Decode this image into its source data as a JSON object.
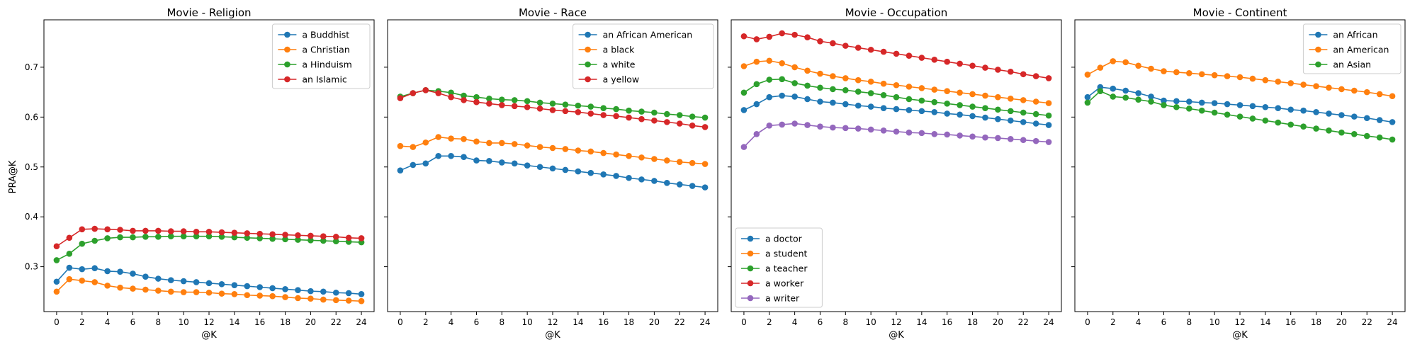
{
  "figure": {
    "ylabel": "PRA@K"
  },
  "chart_data": [
    {
      "type": "line",
      "title": "Movie - Religion",
      "xlabel": "@K",
      "ylabel": "PRA@K",
      "xlim": [
        -1,
        25
      ],
      "ylim": [
        0.21,
        0.795
      ],
      "xticks": [
        0,
        2,
        4,
        6,
        8,
        10,
        12,
        14,
        16,
        18,
        20,
        22,
        24
      ],
      "yticks": [
        0.3,
        0.4,
        0.5,
        0.6,
        0.7
      ],
      "legend": "top-right",
      "x": [
        0,
        1,
        2,
        3,
        4,
        5,
        6,
        7,
        8,
        9,
        10,
        11,
        12,
        13,
        14,
        15,
        16,
        17,
        18,
        19,
        20,
        21,
        22,
        23,
        24
      ],
      "series": [
        {
          "name": "a Buddhist",
          "color": "#1f77b4",
          "values": [
            0.27,
            0.298,
            0.295,
            0.297,
            0.291,
            0.29,
            0.286,
            0.28,
            0.276,
            0.273,
            0.271,
            0.269,
            0.267,
            0.265,
            0.263,
            0.261,
            0.259,
            0.257,
            0.255,
            0.253,
            0.251,
            0.25,
            0.248,
            0.247,
            0.245
          ]
        },
        {
          "name": "a Christian",
          "color": "#ff7f0e",
          "values": [
            0.25,
            0.275,
            0.272,
            0.269,
            0.262,
            0.258,
            0.256,
            0.254,
            0.252,
            0.25,
            0.249,
            0.249,
            0.248,
            0.246,
            0.245,
            0.243,
            0.242,
            0.241,
            0.239,
            0.237,
            0.236,
            0.234,
            0.233,
            0.232,
            0.231
          ]
        },
        {
          "name": "a Hinduism",
          "color": "#2ca02c",
          "values": [
            0.313,
            0.326,
            0.346,
            0.352,
            0.357,
            0.359,
            0.359,
            0.36,
            0.36,
            0.361,
            0.361,
            0.361,
            0.361,
            0.36,
            0.359,
            0.358,
            0.357,
            0.356,
            0.355,
            0.354,
            0.353,
            0.352,
            0.351,
            0.35,
            0.349
          ]
        },
        {
          "name": "an Islamic",
          "color": "#d62728",
          "values": [
            0.341,
            0.358,
            0.375,
            0.376,
            0.375,
            0.374,
            0.372,
            0.372,
            0.372,
            0.371,
            0.371,
            0.37,
            0.37,
            0.369,
            0.368,
            0.367,
            0.366,
            0.365,
            0.364,
            0.363,
            0.362,
            0.361,
            0.36,
            0.358,
            0.357
          ]
        }
      ]
    },
    {
      "type": "line",
      "title": "Movie - Race",
      "xlabel": "@K",
      "xlim": [
        -1,
        25
      ],
      "ylim": [
        0.21,
        0.795
      ],
      "xticks": [
        0,
        2,
        4,
        6,
        8,
        10,
        12,
        14,
        16,
        18,
        20,
        22,
        24
      ],
      "yticks": [
        0.3,
        0.4,
        0.5,
        0.6,
        0.7
      ],
      "legend": "top-right",
      "x": [
        0,
        1,
        2,
        3,
        4,
        5,
        6,
        7,
        8,
        9,
        10,
        11,
        12,
        13,
        14,
        15,
        16,
        17,
        18,
        19,
        20,
        21,
        22,
        23,
        24
      ],
      "series": [
        {
          "name": "an African American",
          "color": "#1f77b4",
          "values": [
            0.493,
            0.504,
            0.507,
            0.522,
            0.522,
            0.52,
            0.513,
            0.512,
            0.509,
            0.507,
            0.503,
            0.5,
            0.497,
            0.494,
            0.491,
            0.488,
            0.485,
            0.482,
            0.478,
            0.475,
            0.472,
            0.468,
            0.465,
            0.462,
            0.459
          ]
        },
        {
          "name": "a black",
          "color": "#ff7f0e",
          "values": [
            0.542,
            0.54,
            0.549,
            0.56,
            0.557,
            0.556,
            0.551,
            0.548,
            0.548,
            0.546,
            0.543,
            0.54,
            0.538,
            0.536,
            0.533,
            0.531,
            0.528,
            0.525,
            0.522,
            0.519,
            0.516,
            0.513,
            0.51,
            0.508,
            0.506
          ]
        },
        {
          "name": "a white",
          "color": "#2ca02c",
          "values": [
            0.641,
            0.648,
            0.654,
            0.652,
            0.649,
            0.643,
            0.64,
            0.637,
            0.635,
            0.634,
            0.632,
            0.629,
            0.627,
            0.625,
            0.623,
            0.621,
            0.618,
            0.616,
            0.613,
            0.611,
            0.609,
            0.606,
            0.604,
            0.601,
            0.599
          ]
        },
        {
          "name": "a yellow",
          "color": "#d62728",
          "values": [
            0.638,
            0.648,
            0.654,
            0.648,
            0.64,
            0.634,
            0.63,
            0.627,
            0.624,
            0.622,
            0.62,
            0.617,
            0.614,
            0.612,
            0.61,
            0.607,
            0.604,
            0.602,
            0.599,
            0.596,
            0.593,
            0.59,
            0.587,
            0.583,
            0.58
          ]
        }
      ]
    },
    {
      "type": "line",
      "title": "Movie - Occupation",
      "xlabel": "@K",
      "xlim": [
        -1,
        25
      ],
      "ylim": [
        0.21,
        0.795
      ],
      "xticks": [
        0,
        2,
        4,
        6,
        8,
        10,
        12,
        14,
        16,
        18,
        20,
        22,
        24
      ],
      "yticks": [
        0.3,
        0.4,
        0.5,
        0.6,
        0.7
      ],
      "legend": "lower-left",
      "x": [
        0,
        1,
        2,
        3,
        4,
        5,
        6,
        7,
        8,
        9,
        10,
        11,
        12,
        13,
        14,
        15,
        16,
        17,
        18,
        19,
        20,
        21,
        22,
        23,
        24
      ],
      "series": [
        {
          "name": "a doctor",
          "color": "#1f77b4",
          "values": [
            0.614,
            0.626,
            0.64,
            0.643,
            0.641,
            0.636,
            0.631,
            0.629,
            0.626,
            0.623,
            0.621,
            0.618,
            0.616,
            0.614,
            0.612,
            0.61,
            0.607,
            0.605,
            0.602,
            0.599,
            0.596,
            0.593,
            0.59,
            0.587,
            0.584
          ]
        },
        {
          "name": "a student",
          "color": "#ff7f0e",
          "values": [
            0.702,
            0.711,
            0.713,
            0.708,
            0.7,
            0.693,
            0.687,
            0.682,
            0.678,
            0.674,
            0.671,
            0.667,
            0.664,
            0.661,
            0.658,
            0.655,
            0.652,
            0.649,
            0.646,
            0.643,
            0.64,
            0.637,
            0.634,
            0.631,
            0.628
          ]
        },
        {
          "name": "a teacher",
          "color": "#2ca02c",
          "values": [
            0.649,
            0.666,
            0.675,
            0.676,
            0.668,
            0.663,
            0.659,
            0.656,
            0.654,
            0.651,
            0.648,
            0.644,
            0.64,
            0.636,
            0.633,
            0.63,
            0.627,
            0.624,
            0.621,
            0.618,
            0.615,
            0.612,
            0.609,
            0.606,
            0.603
          ]
        },
        {
          "name": "a worker",
          "color": "#d62728",
          "values": [
            0.762,
            0.756,
            0.761,
            0.768,
            0.765,
            0.76,
            0.752,
            0.748,
            0.743,
            0.739,
            0.735,
            0.731,
            0.727,
            0.723,
            0.719,
            0.715,
            0.711,
            0.707,
            0.703,
            0.699,
            0.695,
            0.691,
            0.686,
            0.682,
            0.678
          ]
        },
        {
          "name": "a writer",
          "color": "#9467bd",
          "values": [
            0.54,
            0.566,
            0.583,
            0.585,
            0.587,
            0.584,
            0.581,
            0.579,
            0.578,
            0.577,
            0.575,
            0.573,
            0.571,
            0.569,
            0.568,
            0.566,
            0.565,
            0.563,
            0.561,
            0.559,
            0.558,
            0.556,
            0.554,
            0.552,
            0.55
          ]
        }
      ]
    },
    {
      "type": "line",
      "title": "Movie - Continent",
      "xlabel": "@K",
      "xlim": [
        -1,
        25
      ],
      "ylim": [
        0.21,
        0.795
      ],
      "xticks": [
        0,
        2,
        4,
        6,
        8,
        10,
        12,
        14,
        16,
        18,
        20,
        22,
        24
      ],
      "yticks": [
        0.3,
        0.4,
        0.5,
        0.6,
        0.7
      ],
      "legend": "top-right",
      "x": [
        0,
        1,
        2,
        3,
        4,
        5,
        6,
        7,
        8,
        9,
        10,
        11,
        12,
        13,
        14,
        15,
        16,
        17,
        18,
        19,
        20,
        21,
        22,
        23,
        24
      ],
      "series": [
        {
          "name": "an African",
          "color": "#1f77b4",
          "values": [
            0.64,
            0.66,
            0.657,
            0.653,
            0.648,
            0.641,
            0.633,
            0.632,
            0.631,
            0.629,
            0.628,
            0.626,
            0.624,
            0.622,
            0.62,
            0.618,
            0.615,
            0.613,
            0.61,
            0.607,
            0.604,
            0.601,
            0.598,
            0.594,
            0.59
          ]
        },
        {
          "name": "an American",
          "color": "#ff7f0e",
          "values": [
            0.685,
            0.699,
            0.712,
            0.71,
            0.703,
            0.697,
            0.692,
            0.69,
            0.688,
            0.686,
            0.684,
            0.682,
            0.68,
            0.677,
            0.674,
            0.671,
            0.668,
            0.665,
            0.662,
            0.659,
            0.656,
            0.653,
            0.65,
            0.646,
            0.642
          ]
        },
        {
          "name": "an Asian",
          "color": "#2ca02c",
          "values": [
            0.629,
            0.652,
            0.641,
            0.639,
            0.635,
            0.631,
            0.624,
            0.62,
            0.617,
            0.613,
            0.609,
            0.605,
            0.601,
            0.597,
            0.593,
            0.589,
            0.585,
            0.581,
            0.577,
            0.573,
            0.569,
            0.566,
            0.562,
            0.559,
            0.555
          ]
        }
      ]
    }
  ]
}
